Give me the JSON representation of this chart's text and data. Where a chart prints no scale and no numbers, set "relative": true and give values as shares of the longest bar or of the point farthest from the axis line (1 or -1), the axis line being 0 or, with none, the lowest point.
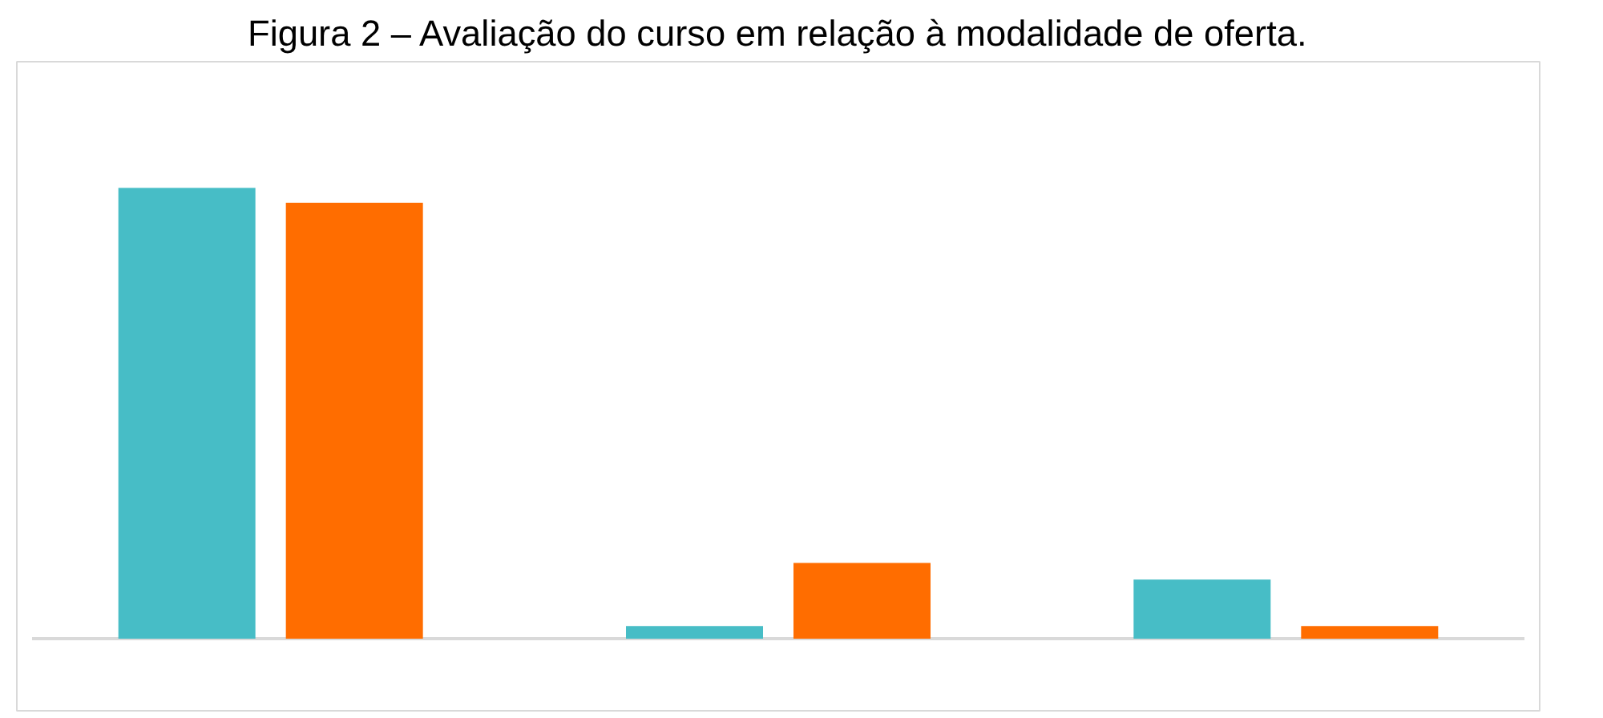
{
  "chart_data": {
    "type": "bar",
    "title": "Figura 2 – Avaliação do curso em relação à modalidade de oferta.",
    "relative": true,
    "categories": [
      null,
      null,
      null
    ],
    "series": [
      {
        "color": "#47bdc6",
        "values": [
          1,
          0.028,
          0.131
        ]
      },
      {
        "color": "#ff6d00",
        "values": [
          0.967,
          0.168,
          0.028
        ]
      }
    ]
  }
}
